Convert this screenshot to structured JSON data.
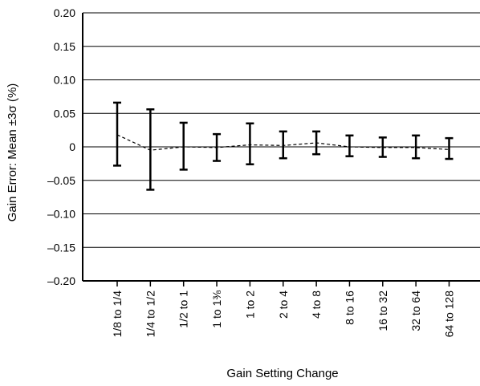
{
  "chart_data": {
    "type": "line",
    "title": "",
    "xlabel": "Gain Setting Change",
    "ylabel": "Gain Error: Mean ±3σ (%)",
    "ylim": [
      -0.2,
      0.2
    ],
    "y_ticks": [
      {
        "value": 0.2,
        "label": "0.20"
      },
      {
        "value": 0.15,
        "label": "0.15"
      },
      {
        "value": 0.1,
        "label": "0.10"
      },
      {
        "value": 0.05,
        "label": "0.05"
      },
      {
        "value": 0,
        "label": "0"
      },
      {
        "value": -0.05,
        "label": "–0.05"
      },
      {
        "value": -0.1,
        "label": "–0.10"
      },
      {
        "value": -0.15,
        "label": "–0.15"
      },
      {
        "value": -0.2,
        "label": "–0.20"
      }
    ],
    "grid": {
      "horizontal": true,
      "vertical": false
    },
    "categories": [
      "1/8 to 1/4",
      "1/4 to 1/2",
      "1/2 to 1",
      "1 to 1⅜",
      "1 to 2",
      "2 to 4",
      "4 to 8",
      "8 to 16",
      "16 to 32",
      "32 to 64",
      "64 to 128"
    ],
    "series": [
      {
        "mean": [
          0.018,
          -0.005,
          0.0,
          -0.001,
          0.003,
          0.002,
          0.006,
          0.0,
          -0.001,
          -0.001,
          -0.004
        ],
        "upper": [
          0.066,
          0.056,
          0.036,
          0.019,
          0.035,
          0.023,
          0.023,
          0.017,
          0.014,
          0.017,
          0.013
        ],
        "lower": [
          -0.028,
          -0.064,
          -0.034,
          -0.021,
          -0.026,
          -0.017,
          -0.011,
          -0.014,
          -0.015,
          -0.017,
          -0.018
        ]
      }
    ],
    "colors": {
      "line": "#000000",
      "grid": "#000000"
    }
  }
}
